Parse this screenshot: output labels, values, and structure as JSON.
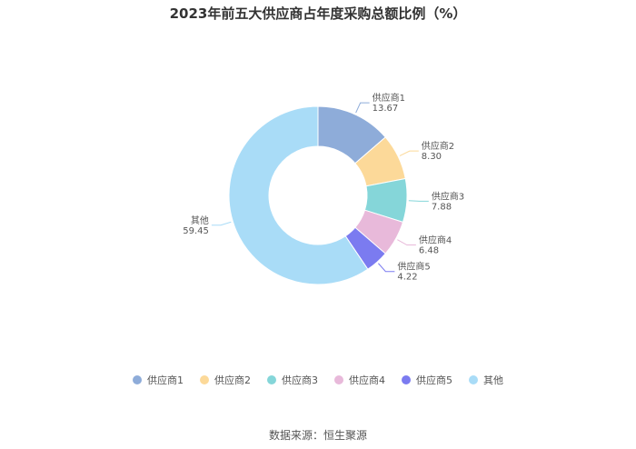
{
  "chart_data": {
    "type": "pie",
    "title": "2023年前五大供应商占年度采购总额比例（%）",
    "categories": [
      "供应商1",
      "供应商2",
      "供应商3",
      "供应商4",
      "供应商5",
      "其他"
    ],
    "values": [
      13.67,
      8.3,
      7.88,
      6.48,
      4.22,
      59.45
    ],
    "value_labels": [
      "13.67",
      "8.30",
      "7.88",
      "6.48",
      "4.22",
      "59.45"
    ],
    "colors": [
      "#8eacd9",
      "#fcd999",
      "#85d6d9",
      "#e8b9da",
      "#7b7bf0",
      "#a9dcf7"
    ],
    "donut": true,
    "legend_position": "bottom"
  },
  "source": "数据来源：恒生聚源"
}
